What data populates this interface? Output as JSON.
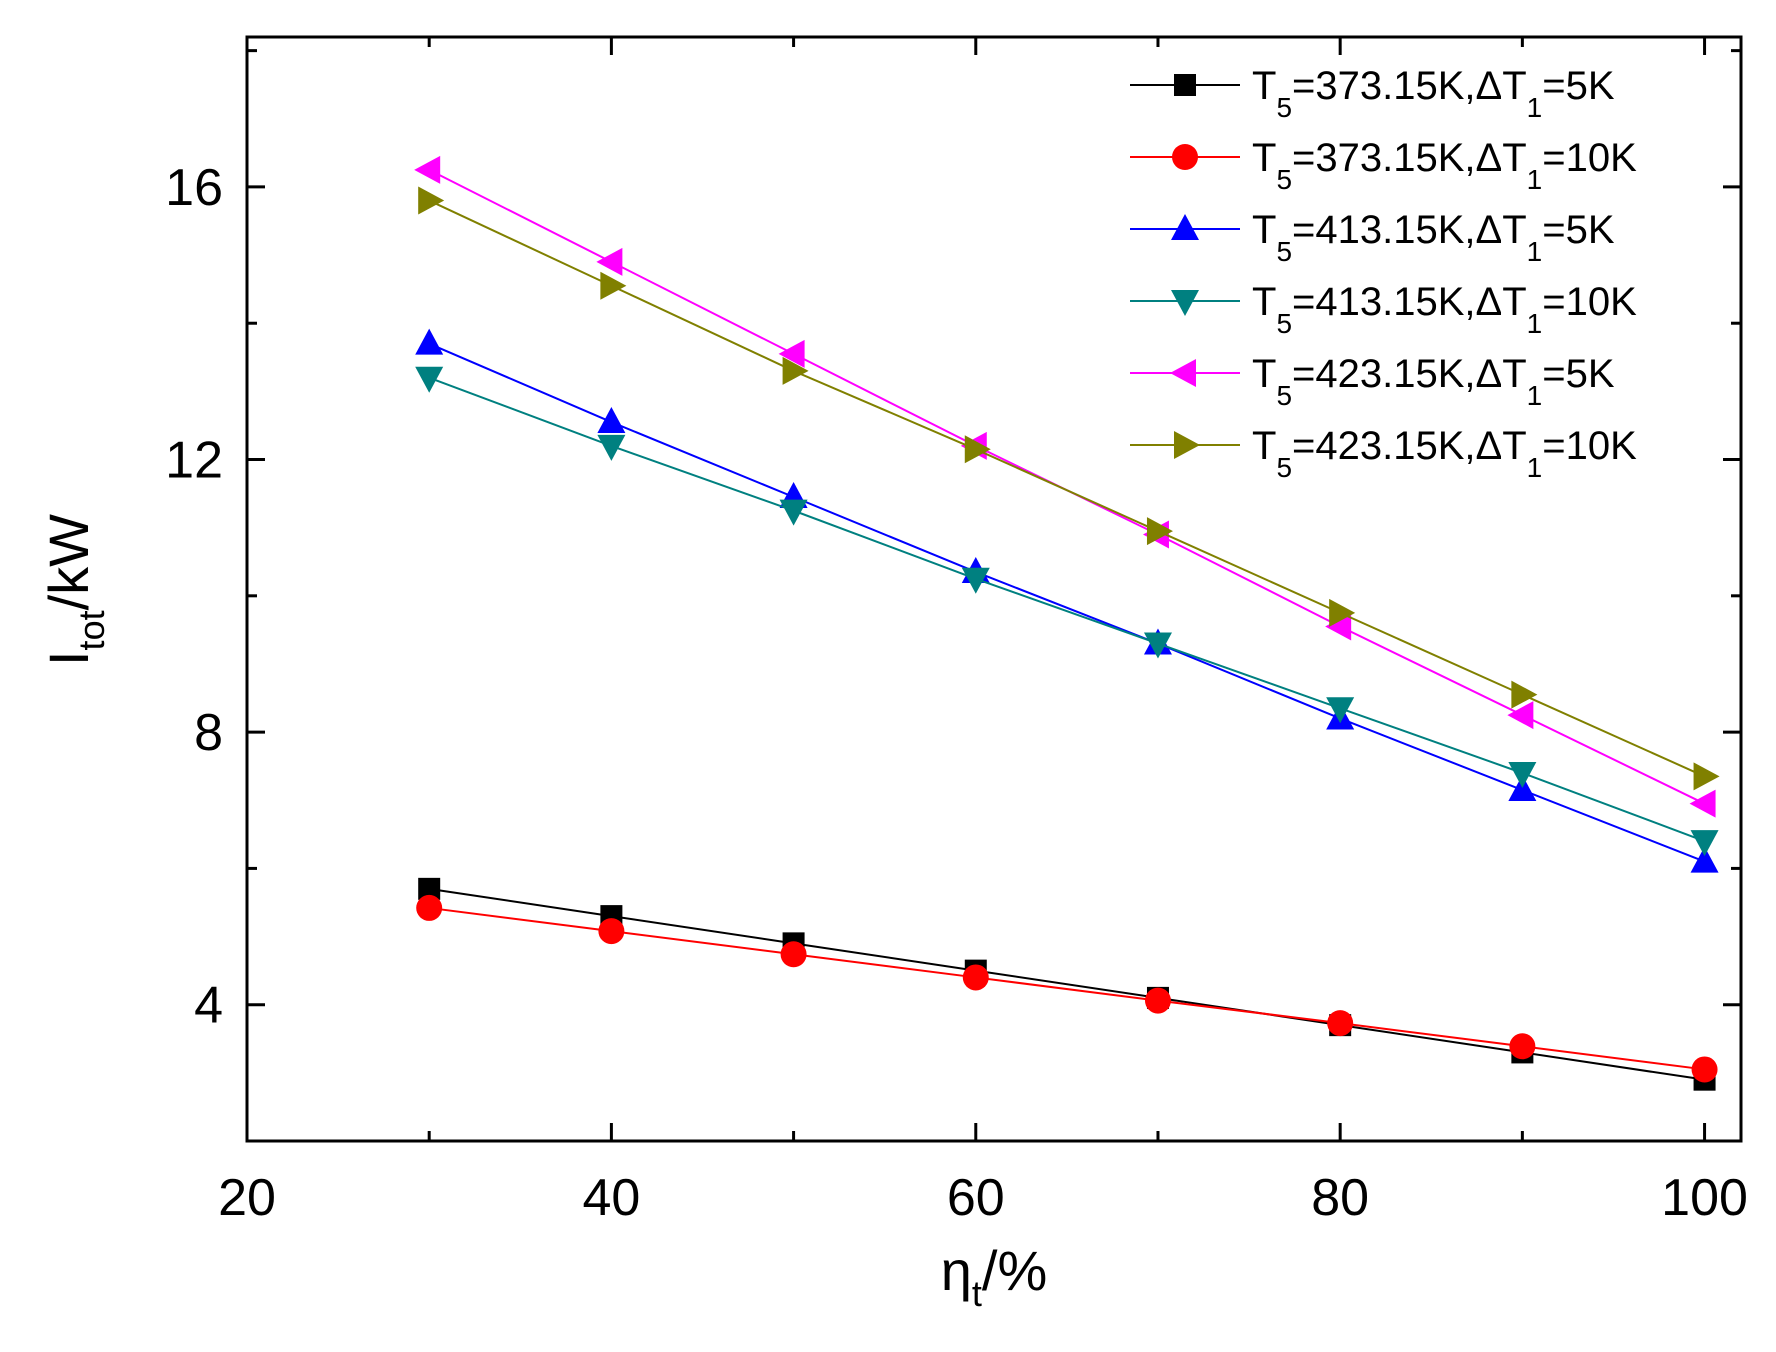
{
  "chart_data": {
    "type": "line",
    "xlabel": {
      "main": "η",
      "sub": "t",
      "rest": "/%"
    },
    "ylabel": {
      "main": "I",
      "sub": "tot",
      "rest": "/kW"
    },
    "xlim": [
      20,
      102
    ],
    "ylim": [
      2,
      18.2
    ],
    "xticks": [
      20,
      40,
      60,
      80,
      100
    ],
    "yticks": [
      4,
      8,
      12,
      16
    ],
    "x": [
      30,
      40,
      50,
      60,
      70,
      80,
      90,
      100
    ],
    "legend_position": "top-right",
    "series": [
      {
        "name": "T5=373.15K,ΔT1=5K",
        "parts": [
          "T",
          "5",
          "=373.15K,ΔT",
          "1",
          "=5K"
        ],
        "color": "#000000",
        "marker": "square",
        "values": [
          5.7,
          5.3,
          4.9,
          4.5,
          4.1,
          3.7,
          3.3,
          2.9
        ]
      },
      {
        "name": "T5=373.15K,ΔT1=10K",
        "parts": [
          "T",
          "5",
          "=373.15K,ΔT",
          "1",
          "=10K"
        ],
        "color": "#ff0000",
        "marker": "circle",
        "values": [
          5.42,
          5.08,
          4.74,
          4.4,
          4.06,
          3.73,
          3.39,
          3.05
        ]
      },
      {
        "name": "T5=413.15K,ΔT1=5K",
        "parts": [
          "T",
          "5",
          "=413.15K,ΔT",
          "1",
          "=5K"
        ],
        "color": "#0000ff",
        "marker": "triangle-up",
        "values": [
          13.7,
          12.55,
          11.45,
          10.35,
          9.3,
          8.2,
          7.15,
          6.1
        ]
      },
      {
        "name": "T5=413.15K,ΔT1=10K",
        "parts": [
          "T",
          "5",
          "=413.15K,ΔT",
          "1",
          "=10K"
        ],
        "color": "#008080",
        "marker": "triangle-down",
        "values": [
          13.2,
          12.2,
          11.25,
          10.25,
          9.3,
          8.35,
          7.4,
          6.4
        ]
      },
      {
        "name": "T5=423.15K,ΔT1=5K",
        "parts": [
          "T",
          "5",
          "=423.15K,ΔT",
          "1",
          "=5K"
        ],
        "color": "#ff00ff",
        "marker": "triangle-left",
        "values": [
          16.25,
          14.9,
          13.55,
          12.2,
          10.9,
          9.55,
          8.25,
          6.95
        ]
      },
      {
        "name": "T5=423.15K,ΔT1=10K",
        "parts": [
          "T",
          "5",
          "=423.15K,ΔT",
          "1",
          "=10K"
        ],
        "color": "#808000",
        "marker": "triangle-right",
        "values": [
          15.8,
          14.55,
          13.3,
          12.15,
          10.95,
          9.75,
          8.55,
          7.35
        ]
      }
    ]
  }
}
